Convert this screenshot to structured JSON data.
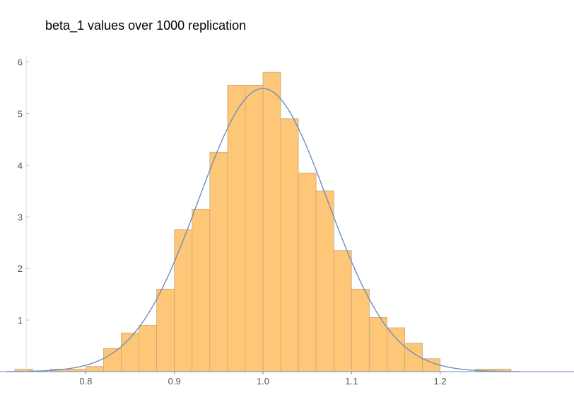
{
  "chart_data": {
    "type": "bar",
    "title": "beta_1 values over 1000 replication",
    "xlabel": "",
    "ylabel": "",
    "xlim": [
      0.71,
      1.29
    ],
    "ylim": [
      0,
      6
    ],
    "x_ticks": [
      0.8,
      0.9,
      1.0,
      1.1,
      1.2
    ],
    "x_tick_labels": [
      "0.8",
      "0.9",
      "1.0",
      "1.1",
      "1.2"
    ],
    "y_ticks": [
      1,
      2,
      3,
      4,
      5,
      6
    ],
    "y_tick_labels": [
      "1",
      "2",
      "3",
      "4",
      "5",
      "6"
    ],
    "bin_width": 0.02,
    "bins": [
      {
        "start": 0.72,
        "value": 0.05
      },
      {
        "start": 0.76,
        "value": 0.05
      },
      {
        "start": 0.78,
        "value": 0.05
      },
      {
        "start": 0.8,
        "value": 0.1
      },
      {
        "start": 0.82,
        "value": 0.45
      },
      {
        "start": 0.84,
        "value": 0.75
      },
      {
        "start": 0.86,
        "value": 0.9
      },
      {
        "start": 0.88,
        "value": 1.6
      },
      {
        "start": 0.9,
        "value": 2.75
      },
      {
        "start": 0.92,
        "value": 3.15
      },
      {
        "start": 0.94,
        "value": 4.25
      },
      {
        "start": 0.96,
        "value": 5.55
      },
      {
        "start": 0.98,
        "value": 5.55
      },
      {
        "start": 1.0,
        "value": 5.8
      },
      {
        "start": 1.02,
        "value": 4.9
      },
      {
        "start": 1.04,
        "value": 3.85
      },
      {
        "start": 1.06,
        "value": 3.5
      },
      {
        "start": 1.08,
        "value": 2.35
      },
      {
        "start": 1.1,
        "value": 1.6
      },
      {
        "start": 1.12,
        "value": 1.05
      },
      {
        "start": 1.14,
        "value": 0.85
      },
      {
        "start": 1.16,
        "value": 0.55
      },
      {
        "start": 1.18,
        "value": 0.25
      },
      {
        "start": 1.24,
        "value": 0.05
      },
      {
        "start": 1.26,
        "value": 0.05
      }
    ],
    "density_curve": {
      "type": "normal",
      "mean": 1.0,
      "sd": 0.0727
    },
    "colors": {
      "bar_fill": "#fdc777",
      "bar_stroke": "#c9a77a",
      "curve": "#6d8fbf",
      "axis": "#999999"
    }
  }
}
